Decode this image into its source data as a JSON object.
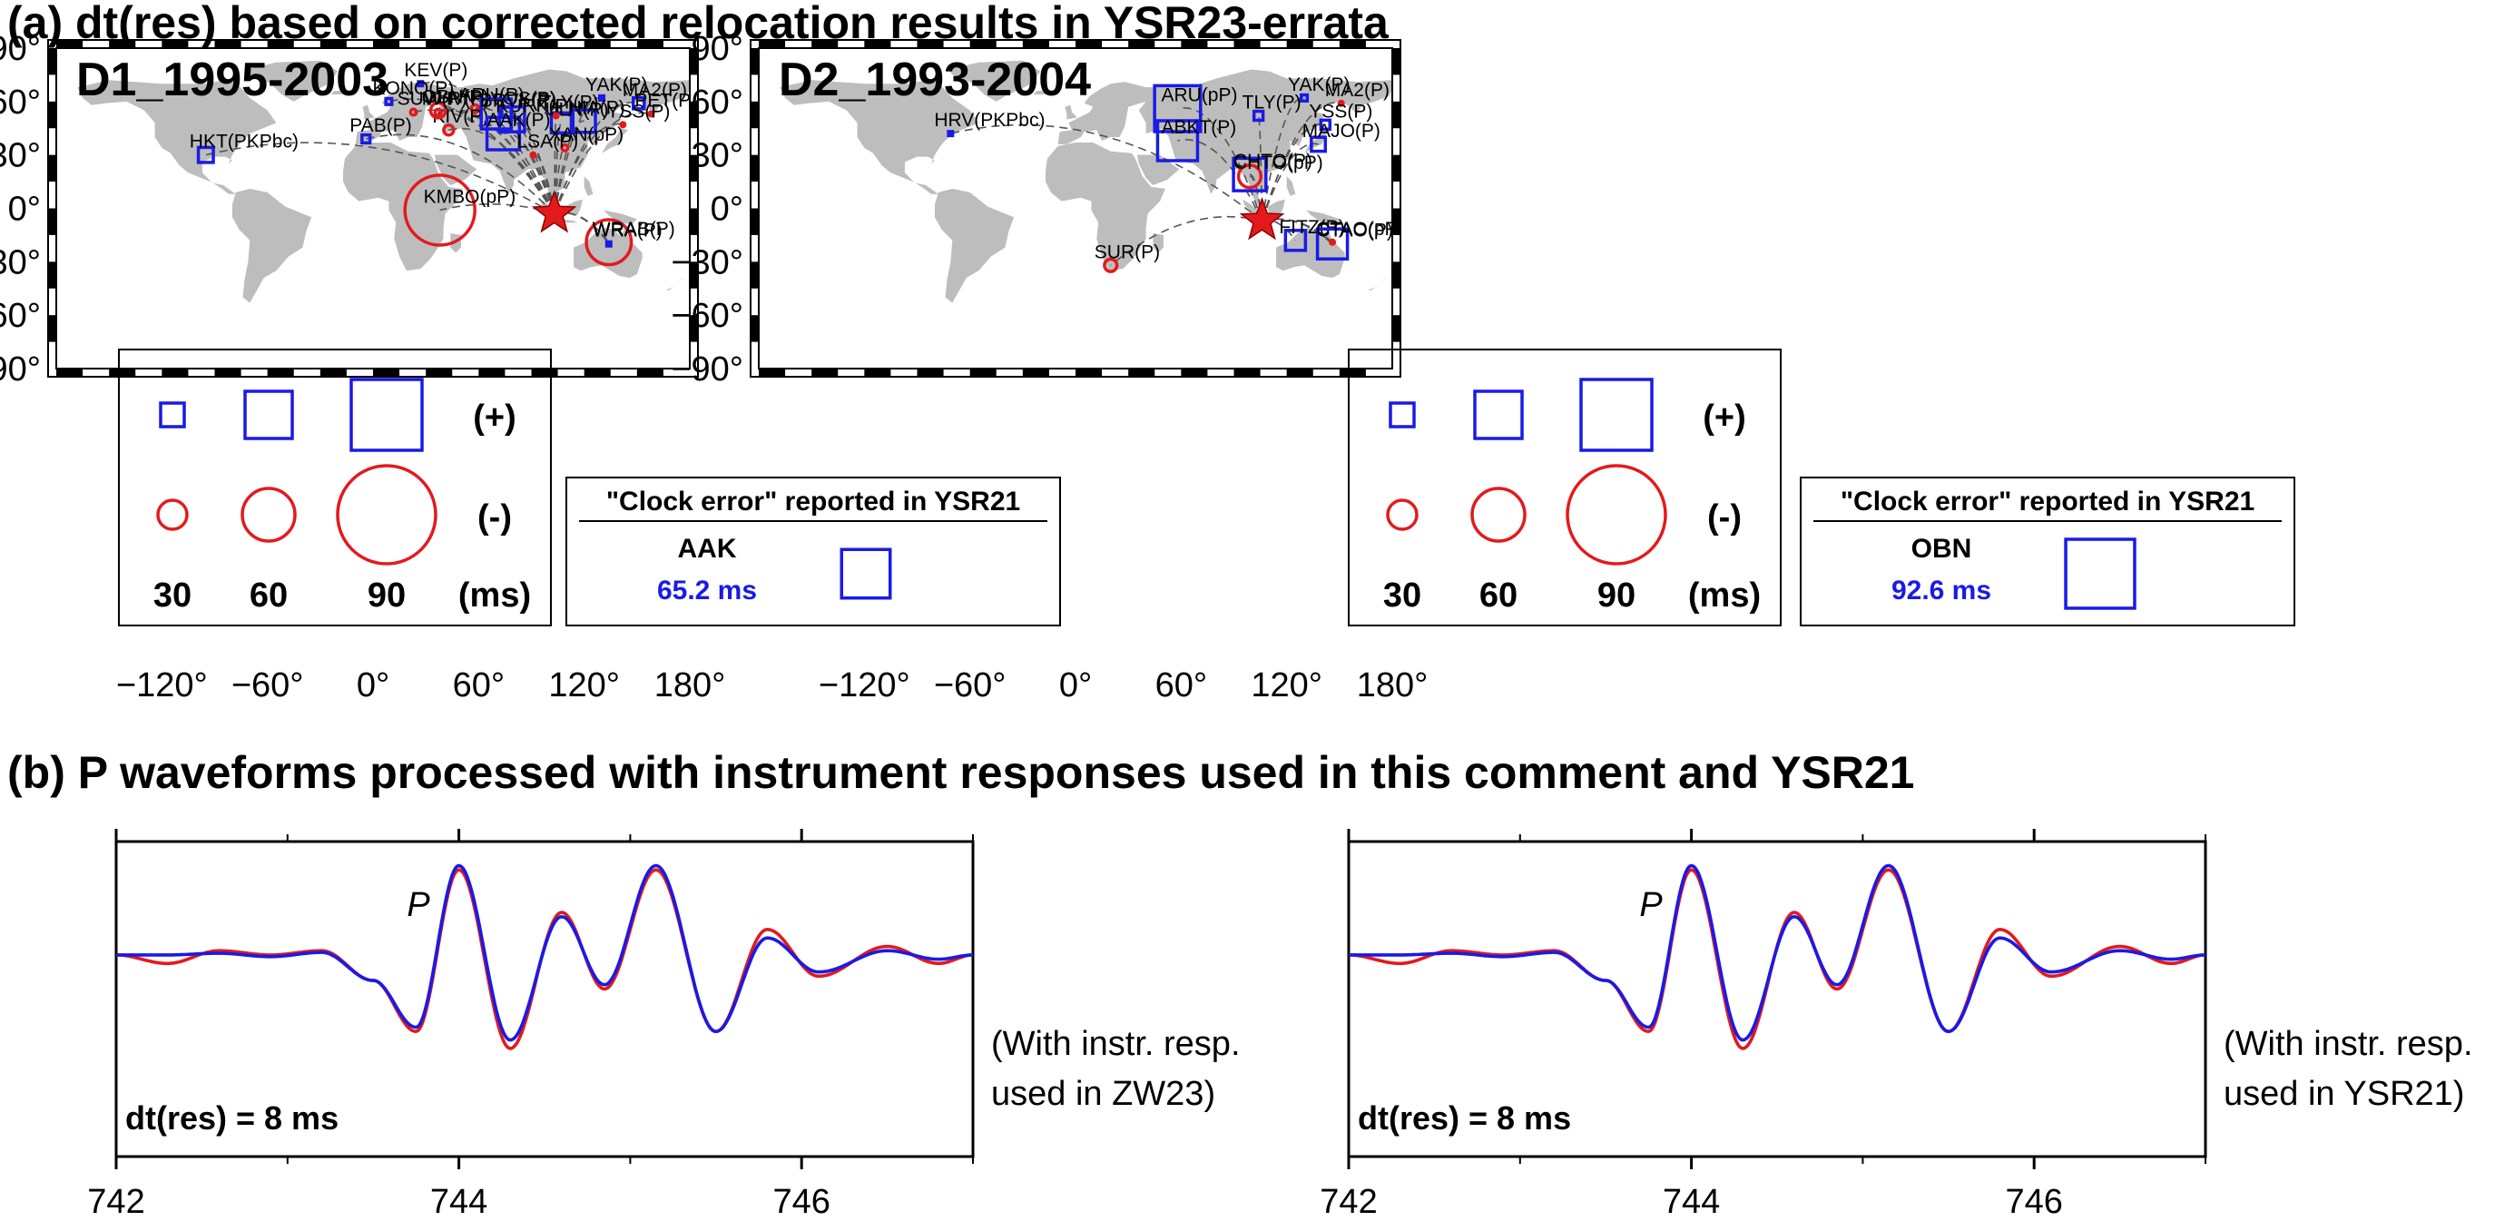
{
  "figure": {
    "title_a": "(a) dt(res) based on corrected relocation results in YSR23-errata",
    "title_b": "(b) P waveforms processed with instrument responses used in this comment and YSR21"
  },
  "maps": [
    {
      "id": "D1",
      "label": "D1_1995-2003",
      "lat_ticks": [
        "90°",
        "60°",
        "30°",
        "0°",
        "−30°",
        "−60°",
        "−90°"
      ],
      "lon_ticks": [
        "−120°",
        "−60°",
        "0°",
        "60°",
        "120°",
        "180°"
      ],
      "event": {
        "lon": 103,
        "lat": -3
      },
      "stations": [
        {
          "name": "KEV(P)",
          "lon": 27,
          "lat": 70,
          "kind": "blue",
          "ms": 4
        },
        {
          "name": "HKT(PKPbc)",
          "lon": -95,
          "lat": 30,
          "kind": "blue",
          "ms": 30
        },
        {
          "name": "KMBO(pP)",
          "lon": 38,
          "lat": -1,
          "kind": "red",
          "ms": 140
        },
        {
          "name": "YAK(P)",
          "lon": 130,
          "lat": 62,
          "kind": "blue",
          "ms": 8
        },
        {
          "name": "MA2(P)",
          "lon": 151,
          "lat": 59,
          "kind": "blue",
          "ms": 22
        },
        {
          "name": "PET(P)",
          "lon": 158,
          "lat": 53,
          "kind": "red",
          "ms": 5
        },
        {
          "name": "YSS(P)",
          "lon": 142,
          "lat": 47,
          "kind": "red",
          "ms": 4
        },
        {
          "name": "ULN(P)",
          "lon": 107,
          "lat": 48,
          "kind": "blue",
          "ms": 40
        },
        {
          "name": "HIA(P)",
          "lon": 120,
          "lat": 49,
          "kind": "blue",
          "ms": 45
        },
        {
          "name": "XAN(pP)",
          "lon": 109,
          "lat": 34,
          "kind": "red",
          "ms": 12
        },
        {
          "name": "VOS(P)",
          "lon": 76,
          "lat": 54,
          "kind": "blue",
          "ms": 20
        },
        {
          "name": "KURK(P)",
          "lon": 79,
          "lat": 50,
          "kind": "blue",
          "ms": 50
        },
        {
          "name": "TLY(P)",
          "lon": 104,
          "lat": 52,
          "kind": "red",
          "ms": 8
        },
        {
          "name": "ARU(P)",
          "lon": 58,
          "lat": 56,
          "kind": "red",
          "ms": 15
        },
        {
          "name": "KIV(P)",
          "lon": 43,
          "lat": 44,
          "kind": "red",
          "ms": 20
        },
        {
          "name": "MHV(P)",
          "lon": 37,
          "lat": 54,
          "kind": "red",
          "ms": 12
        },
        {
          "name": "OBN(P)",
          "lon": 37,
          "lat": 55,
          "kind": "red",
          "ms": 30
        },
        {
          "name": "KONO(P)",
          "lon": 9,
          "lat": 60,
          "kind": "blue",
          "ms": 12
        },
        {
          "name": "PAB(P)",
          "lon": -4,
          "lat": 39,
          "kind": "blue",
          "ms": 16
        },
        {
          "name": "SUW(P)",
          "lon": 23,
          "lat": 54,
          "kind": "red",
          "ms": 12
        },
        {
          "name": "BRVK(P)",
          "lon": 70,
          "lat": 53,
          "kind": "blue",
          "ms": 60
        },
        {
          "name": "AAK(P)",
          "lon": 74,
          "lat": 42,
          "kind": "blue",
          "ms": 65
        },
        {
          "name": "LSA(P)",
          "lon": 91,
          "lat": 30,
          "kind": "red",
          "ms": 8
        },
        {
          "name": "WRAB(P)",
          "lon": 134,
          "lat": -19,
          "kind": "red",
          "ms": 90
        },
        {
          "name": "WRA(P)",
          "lon": 134,
          "lat": -20,
          "kind": "blue",
          "ms": 6
        }
      ],
      "legend": {
        "blue_sizes": [
          30,
          60,
          90
        ],
        "red_sizes": [
          30,
          60,
          90
        ],
        "plus_label": "(+)",
        "minus_label": "(-)",
        "size_labels": [
          "30",
          "60",
          "90"
        ],
        "unit_label": "(ms)"
      },
      "clock_box": {
        "title": "\"Clock error\" reported in YSR21",
        "station": "AAK",
        "value": "65.2 ms",
        "ms": 65.2
      }
    },
    {
      "id": "D2",
      "label": "D2_1993-2004",
      "lat_ticks": [
        "90°",
        "60°",
        "30°",
        "0°",
        "−30°",
        "−60°",
        "−90°"
      ],
      "lon_ticks": [
        "−120°",
        "−60°",
        "0°",
        "60°",
        "120°",
        "180°"
      ],
      "event": {
        "lon": 106,
        "lat": -7
      },
      "stations": [
        {
          "name": "HRV(PKPbc)",
          "lon": -71,
          "lat": 42,
          "kind": "blue",
          "ms": 4
        },
        {
          "name": "YAK(P)",
          "lon": 130,
          "lat": 62,
          "kind": "blue",
          "ms": 12
        },
        {
          "name": "MA2(P)",
          "lon": 151,
          "lat": 59,
          "kind": "red",
          "ms": 5
        },
        {
          "name": "TLY(P)",
          "lon": 104,
          "lat": 52,
          "kind": "blue",
          "ms": 18
        },
        {
          "name": "YSS(P)",
          "lon": 142,
          "lat": 47,
          "kind": "blue",
          "ms": 18
        },
        {
          "name": "MAJO(P)",
          "lon": 138,
          "lat": 36,
          "kind": "blue",
          "ms": 28
        },
        {
          "name": "ARU(pP)",
          "lon": 58,
          "lat": 56,
          "kind": "blue",
          "ms": 92
        },
        {
          "name": "ABKT(P)",
          "lon": 58,
          "lat": 38,
          "kind": "blue",
          "ms": 80
        },
        {
          "name": "CHTO(P)",
          "lon": 99,
          "lat": 19,
          "kind": "blue",
          "ms": 65
        },
        {
          "name": "CHTO(pP)",
          "lon": 99,
          "lat": 18,
          "kind": "red",
          "ms": 45
        },
        {
          "name": "SUR(P)",
          "lon": 20,
          "lat": -32,
          "kind": "red",
          "ms": 25
        },
        {
          "name": "FITZ(P)",
          "lon": 125,
          "lat": -18,
          "kind": "blue",
          "ms": 40
        },
        {
          "name": "CTAO(P)",
          "lon": 146,
          "lat": -20,
          "kind": "blue",
          "ms": 60
        },
        {
          "name": "CTAO(pP)",
          "lon": 146,
          "lat": -19,
          "kind": "red",
          "ms": 5
        }
      ],
      "legend": {
        "blue_sizes": [
          30,
          60,
          90
        ],
        "red_sizes": [
          30,
          60,
          90
        ],
        "plus_label": "(+)",
        "minus_label": "(-)",
        "size_labels": [
          "30",
          "60",
          "90"
        ],
        "unit_label": "(ms)"
      },
      "clock_box": {
        "title": "\"Clock error\" reported in YSR21",
        "station": "OBN",
        "value": "92.6 ms",
        "ms": 92.6
      }
    }
  ],
  "waveforms": [
    {
      "id": "left",
      "dt_label": "dt(res) = 8 ms",
      "phase_label": "P",
      "note_line1": "(With instr. resp.",
      "note_line2": "used in ZW23)",
      "x_ticks": [
        "742",
        "744",
        "746"
      ]
    },
    {
      "id": "right",
      "dt_label": "dt(res) = 8 ms",
      "phase_label": "P",
      "note_line1": "(With instr. resp.",
      "note_line2": "used in YSR21)",
      "x_ticks": [
        "742",
        "744",
        "746"
      ]
    }
  ],
  "chart_data": [
    {
      "type": "line",
      "title": "",
      "x_range": [
        742,
        747
      ],
      "x_ticks": [
        742,
        744,
        746
      ],
      "series": [
        {
          "color": "#e31a1c",
          "x": [
            742,
            742.3,
            742.6,
            742.9,
            743.2,
            743.5,
            743.75,
            744,
            744.3,
            744.6,
            744.85,
            745.15,
            745.5,
            745.8,
            746.1,
            746.5,
            746.8,
            747
          ],
          "y": [
            0,
            -0.1,
            0.05,
            0,
            0.05,
            -0.3,
            -0.9,
            1.0,
            -1.1,
            0.5,
            -0.4,
            1.0,
            -0.9,
            0.3,
            -0.25,
            0.1,
            -0.1,
            0
          ]
        },
        {
          "color": "#1a1ae6",
          "x": [
            742,
            742.3,
            742.6,
            742.9,
            743.2,
            743.5,
            743.75,
            744,
            744.3,
            744.6,
            744.85,
            745.15,
            745.5,
            745.8,
            746.1,
            746.5,
            746.8,
            747
          ],
          "y": [
            0,
            0,
            0.02,
            -0.02,
            0.03,
            -0.3,
            -0.85,
            1.05,
            -1.0,
            0.45,
            -0.35,
            1.05,
            -0.9,
            0.2,
            -0.2,
            0.05,
            -0.05,
            0
          ]
        }
      ]
    }
  ]
}
